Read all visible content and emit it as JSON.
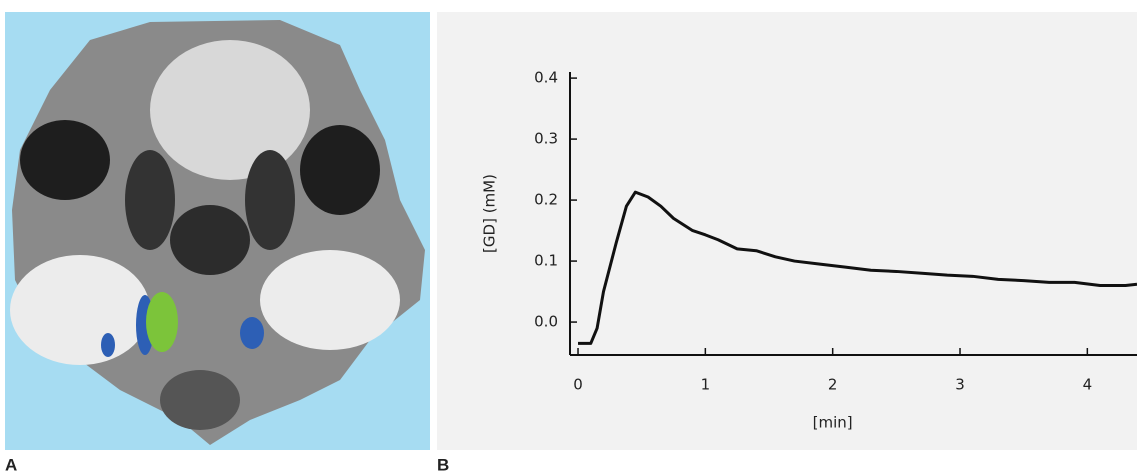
{
  "panel_labels": [
    "A",
    "B"
  ],
  "chart_data": {
    "type": "line",
    "x_label": "[min]",
    "y_label": "[GD] (mM)",
    "xlim": [
      -0.063,
      4.39
    ],
    "ylim": [
      -0.054,
      0.41
    ],
    "xticks": [
      0,
      1,
      2,
      3,
      4
    ],
    "yticks": [
      {
        "value": 0,
        "label": "0.0"
      },
      0.1,
      0.2,
      0.3,
      0.4
    ],
    "series": [
      {
        "color": "#111111",
        "x": [
          0,
          0.1,
          0.15,
          0.2,
          0.3,
          0.38,
          0.45,
          0.55,
          0.65,
          0.75,
          0.9,
          1.0,
          1.1,
          1.25,
          1.4,
          1.55,
          1.7,
          1.9,
          2.1,
          2.3,
          2.5,
          2.7,
          2.9,
          3.1,
          3.3,
          3.5,
          3.7,
          3.9,
          4.1,
          4.3,
          4.39
        ],
        "values": [
          -0.035,
          -0.035,
          -0.01,
          0.05,
          0.13,
          0.19,
          0.213,
          0.205,
          0.19,
          0.17,
          0.15,
          0.143,
          0.135,
          0.12,
          0.117,
          0.107,
          0.1,
          0.095,
          0.09,
          0.085,
          0.083,
          0.08,
          0.077,
          0.075,
          0.07,
          0.068,
          0.065,
          0.065,
          0.06,
          0.06,
          0.062
        ]
      }
    ]
  }
}
